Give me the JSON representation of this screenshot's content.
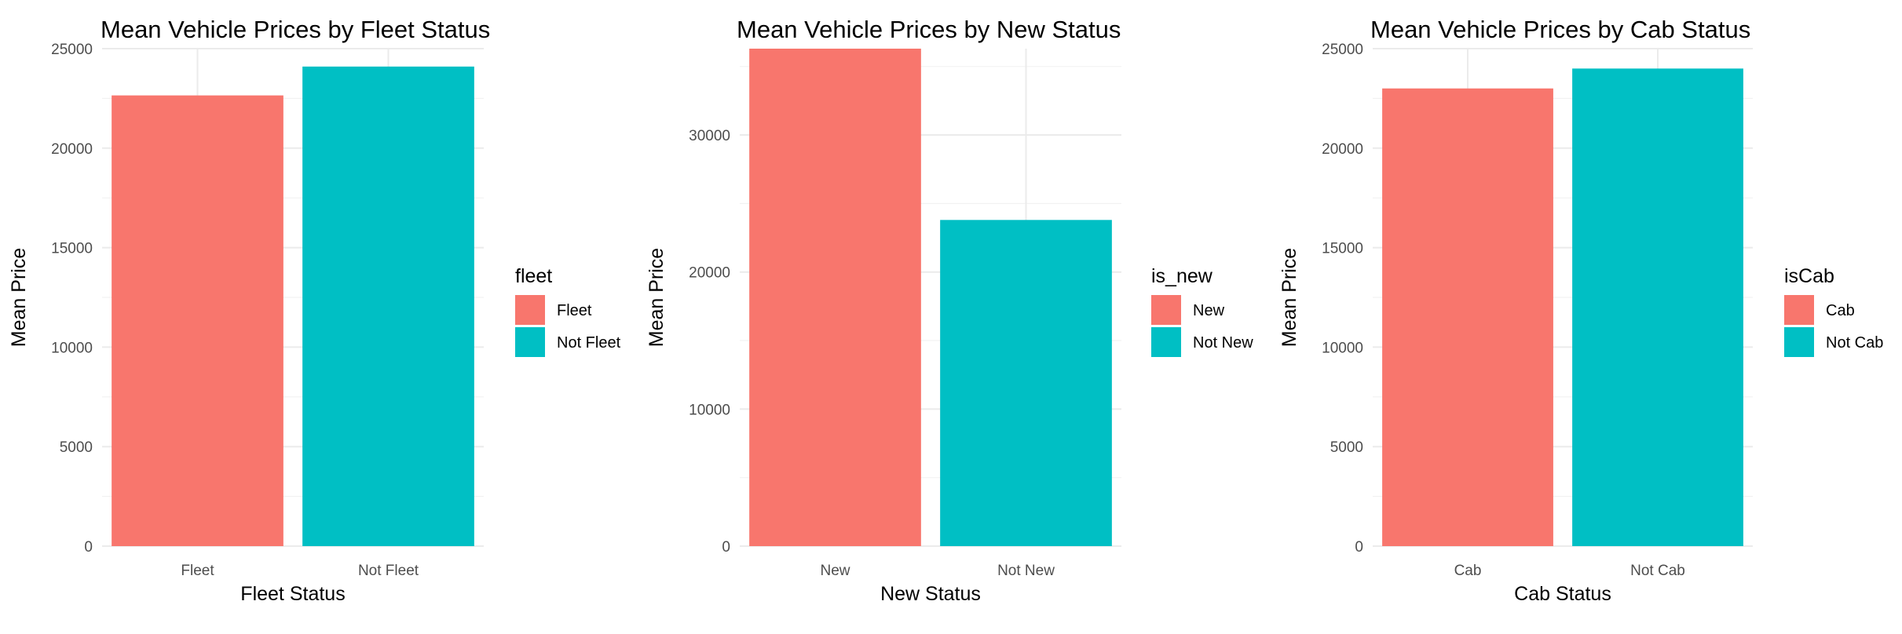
{
  "chart_data": [
    {
      "type": "bar",
      "title": "Mean Vehicle Prices by Fleet Status",
      "xlabel": "Fleet Status",
      "ylabel": "Mean Price",
      "categories": [
        "Fleet",
        "Not Fleet"
      ],
      "values": [
        22650,
        24100
      ],
      "ylim": [
        0,
        25000
      ],
      "yticks": [
        0,
        5000,
        10000,
        15000,
        20000,
        25000
      ],
      "legend": {
        "title": "fleet",
        "position": "right",
        "entries": [
          "Fleet",
          "Not Fleet"
        ]
      },
      "colors": [
        "#F8766D",
        "#00BFC4"
      ],
      "grid": true
    },
    {
      "type": "bar",
      "title": "Mean Vehicle Prices by New Status",
      "xlabel": "New Status",
      "ylabel": "Mean Price",
      "categories": [
        "New",
        "Not New"
      ],
      "values": [
        36300,
        23800
      ],
      "ylim": [
        0,
        36300
      ],
      "yticks": [
        0,
        10000,
        20000,
        30000
      ],
      "legend": {
        "title": "is_new",
        "position": "right",
        "entries": [
          "New",
          "Not New"
        ]
      },
      "colors": [
        "#F8766D",
        "#00BFC4"
      ],
      "grid": true
    },
    {
      "type": "bar",
      "title": "Mean Vehicle Prices by Cab Status",
      "xlabel": "Cab Status",
      "ylabel": "Mean Price",
      "categories": [
        "Cab",
        "Not Cab"
      ],
      "values": [
        23000,
        24000
      ],
      "ylim": [
        0,
        25000
      ],
      "yticks": [
        0,
        5000,
        10000,
        15000,
        20000,
        25000
      ],
      "legend": {
        "title": "isCab",
        "position": "right",
        "entries": [
          "Cab",
          "Not Cab"
        ]
      },
      "colors": [
        "#F8766D",
        "#00BFC4"
      ],
      "grid": true
    }
  ]
}
